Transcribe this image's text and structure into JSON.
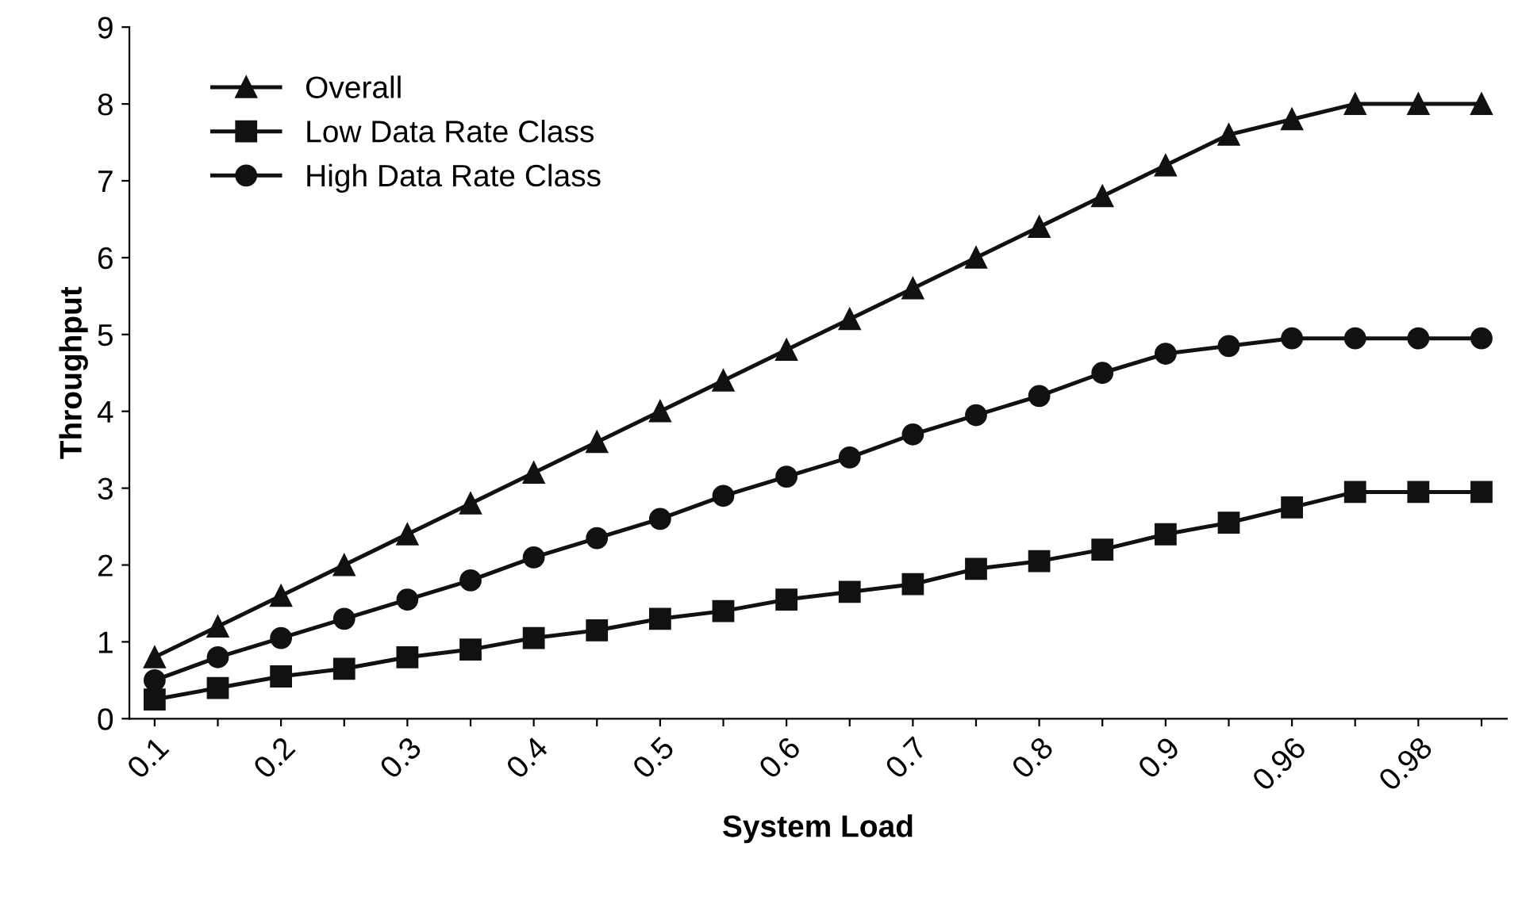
{
  "chart_data": {
    "type": "line",
    "xlabel": "System Load",
    "ylabel": "Throughput",
    "categories": [
      "0.1",
      null,
      "0.2",
      null,
      "0.3",
      null,
      "0.4",
      null,
      "0.5",
      null,
      "0.6",
      null,
      "0.7",
      null,
      "0.8",
      null,
      "0.9",
      null,
      "0.96",
      null,
      "0.98",
      null
    ],
    "series": [
      {
        "name": "Overall",
        "color": "#111111",
        "marker": "triangle",
        "values": [
          0.8,
          1.2,
          1.6,
          2.0,
          2.4,
          2.8,
          3.2,
          3.6,
          4.0,
          4.4,
          4.8,
          5.2,
          5.6,
          6.0,
          6.4,
          6.8,
          7.2,
          7.6,
          7.8,
          8,
          8,
          8
        ]
      },
      {
        "name": "Low Data Rate Class",
        "color": "#111111",
        "marker": "square",
        "values": [
          0.25,
          0.4,
          0.55,
          0.65,
          0.8,
          0.9,
          1.05,
          1.15,
          1.3,
          1.4,
          1.55,
          1.65,
          1.75,
          1.95,
          2.05,
          2.2,
          2.4,
          2.55,
          2.75,
          2.95,
          2.95,
          2.95
        ]
      },
      {
        "name": "High Data Rate Class",
        "color": "#111111",
        "marker": "circle",
        "values": [
          0.5,
          0.8,
          1.05,
          1.3,
          1.55,
          1.8,
          2.1,
          2.35,
          2.6,
          2.9,
          3.15,
          3.4,
          3.7,
          3.95,
          4.2,
          4.5,
          4.75,
          4.85,
          4.95,
          4.95,
          4.95,
          4.95
        ]
      }
    ],
    "ylim": [
      0,
      9
    ],
    "yticks": [
      0,
      1,
      2,
      3,
      4,
      5,
      6,
      7,
      8,
      9
    ],
    "grid": false,
    "legend": "top left",
    "line_style": "solid"
  }
}
